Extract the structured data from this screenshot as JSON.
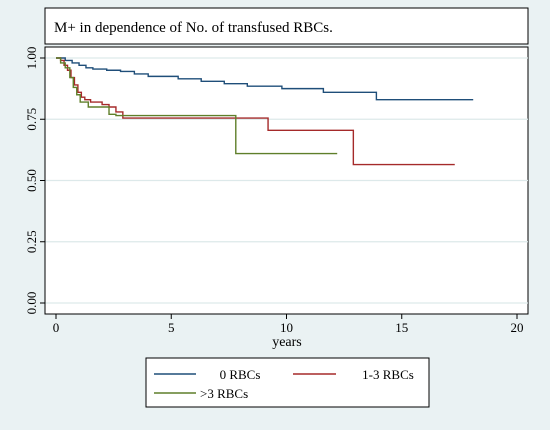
{
  "chart_data": {
    "type": "line",
    "title": "M+ in dependence of No. of transfused RBCs.",
    "xlabel": "years",
    "ylabel": "",
    "xlim": [
      0,
      20
    ],
    "ylim": [
      0,
      1
    ],
    "xticks": [
      0,
      5,
      10,
      15,
      20
    ],
    "yticks": [
      0,
      0.25,
      0.5,
      0.75,
      1
    ],
    "xtick_labels": [
      "0",
      "5",
      "10",
      "15",
      "20"
    ],
    "ytick_labels": [
      "0.00",
      "0.25",
      "0.50",
      "0.75",
      "1.00"
    ],
    "grid": true,
    "legend_position": "bottom",
    "series": [
      {
        "name": "0 RBCs",
        "color": "#1f4e79",
        "step": true,
        "x": [
          0,
          0.4,
          0.7,
          1.0,
          1.3,
          1.6,
          2.2,
          2.8,
          3.4,
          4.0,
          5.3,
          6.3,
          7.3,
          8.3,
          9.8,
          11.6,
          13.9,
          18.1
        ],
        "y": [
          1.0,
          0.99,
          0.98,
          0.97,
          0.96,
          0.955,
          0.95,
          0.945,
          0.935,
          0.925,
          0.915,
          0.905,
          0.895,
          0.885,
          0.875,
          0.86,
          0.83,
          0.83
        ]
      },
      {
        "name": "1-3 RBCs",
        "color": "#a52a2a",
        "step": true,
        "x": [
          0,
          0.2,
          0.35,
          0.5,
          0.65,
          0.8,
          0.95,
          1.1,
          1.25,
          1.5,
          2.0,
          2.3,
          2.6,
          2.9,
          9.2,
          12.9,
          17.3
        ],
        "y": [
          1.0,
          0.99,
          0.97,
          0.95,
          0.92,
          0.89,
          0.86,
          0.84,
          0.83,
          0.82,
          0.81,
          0.8,
          0.78,
          0.755,
          0.705,
          0.565,
          0.565
        ]
      },
      {
        "name": ">3 RBCs",
        "color": "#5f7f2a",
        "step": true,
        "x": [
          0,
          0.2,
          0.4,
          0.6,
          0.75,
          0.9,
          1.05,
          1.4,
          2.3,
          2.6,
          7.8,
          12.2
        ],
        "y": [
          1.0,
          0.98,
          0.96,
          0.92,
          0.88,
          0.85,
          0.82,
          0.8,
          0.77,
          0.765,
          0.61,
          0.61
        ]
      }
    ]
  }
}
